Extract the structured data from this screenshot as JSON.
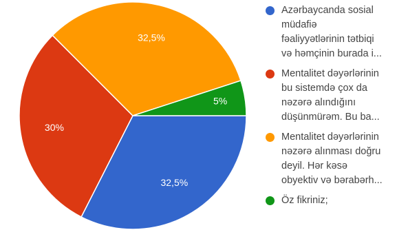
{
  "chart_data": {
    "type": "pie",
    "slices": [
      {
        "label": "Azərbaycanda sosial\nmüdafiə\nfəaliyyətlərinin tətbiqi\nvə həmçinin burada i...",
        "value": 32.5,
        "value_label": "32,5%",
        "color": "#3366cc"
      },
      {
        "label": "Mentalitet dəyərlərinin\nbu sistemdə çox da\nnəzərə alındığını\ndüşünmürəm. Bu ba...",
        "value": 30,
        "value_label": "30%",
        "color": "#dc3912"
      },
      {
        "label": "Mentalitet dəyərlərinin\nnəzərə alınması doğru\ndeyil. Hər kəsə\nobyektiv və bərabərh...",
        "value": 32.5,
        "value_label": "32,5%",
        "color": "#ff9900"
      },
      {
        "label": "Öz fikriniz;",
        "value": 5,
        "value_label": "5%",
        "color": "#109618"
      }
    ]
  }
}
